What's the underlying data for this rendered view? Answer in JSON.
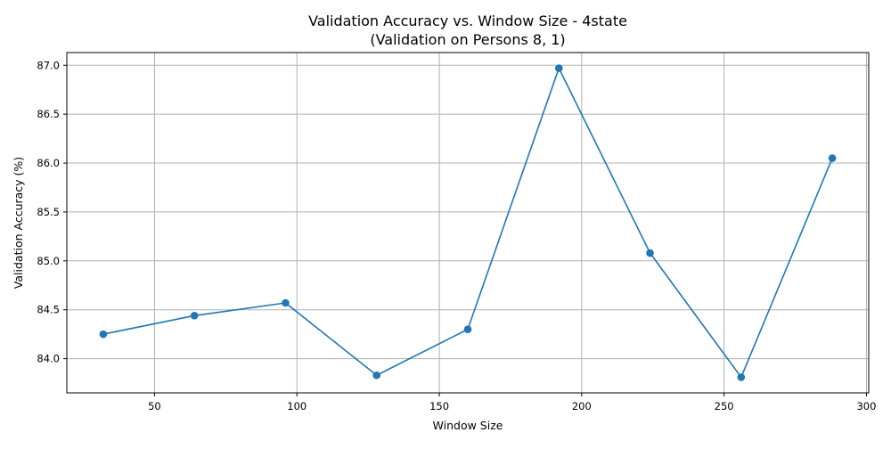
{
  "chart_data": {
    "type": "line",
    "title": "Validation Accuracy vs. Window Size - 4state",
    "subtitle": "(Validation on Persons 8, 1)",
    "xlabel": "Window Size",
    "ylabel": "Validation Accuracy (%)",
    "xlim": [
      19.2,
      300.8
    ],
    "ylim": [
      83.65,
      87.13
    ],
    "xticks": [
      50,
      100,
      150,
      200,
      250,
      300
    ],
    "yticks": [
      84.0,
      84.5,
      85.0,
      85.5,
      86.0,
      86.5,
      87.0
    ],
    "xtick_labels": [
      "50",
      "100",
      "150",
      "200",
      "250",
      "300"
    ],
    "ytick_labels": [
      "84.0",
      "84.5",
      "85.0",
      "85.5",
      "86.0",
      "86.5",
      "87.0"
    ],
    "grid": true,
    "series": [
      {
        "color": "#1f77b4",
        "marker": "circle",
        "x": [
          32,
          64,
          96,
          128,
          160,
          192,
          224,
          256,
          288
        ],
        "y": [
          84.25,
          84.44,
          84.57,
          83.83,
          84.3,
          86.97,
          85.08,
          83.81,
          86.05
        ]
      }
    ]
  }
}
